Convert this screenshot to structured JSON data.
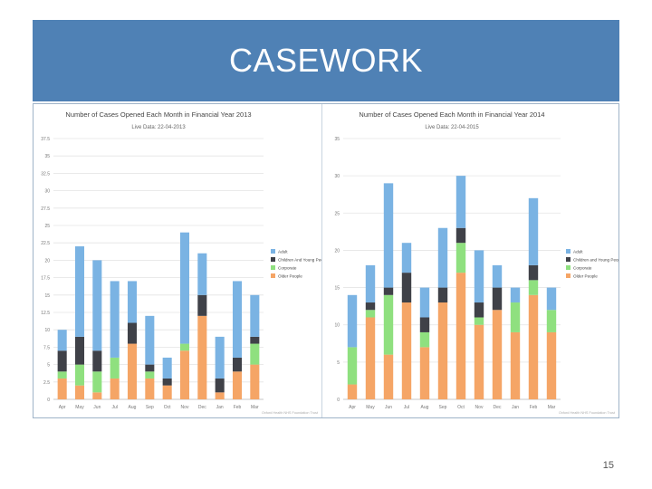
{
  "slide": {
    "title": "CASEWORK",
    "page_number": "15"
  },
  "colors": {
    "header": "#4f81b5",
    "adult": "#7ab3e3",
    "children": "#3f4148",
    "corporate": "#8fe07f",
    "older": "#f5a566"
  },
  "chart_data": [
    {
      "type": "bar",
      "stacked": true,
      "title": "Number of Cases Opened Each Month in Financial Year 2013",
      "subtitle": "Live Data: 22-04-2013",
      "ylabel": "",
      "ylim": [
        0,
        37.5
      ],
      "yticks": [
        0,
        2.5,
        5,
        7.5,
        10,
        12.5,
        15,
        17.5,
        20,
        22.5,
        25,
        27.5,
        30,
        32.5,
        35,
        37.5
      ],
      "yticklabels": [
        "0",
        "2.5",
        "5",
        "7.5",
        "10",
        "12.5",
        "15",
        "17.5",
        "20",
        "22.5",
        "25",
        "27.5",
        "30",
        "32.5",
        "35",
        "37.5"
      ],
      "categories": [
        "Apr",
        "May",
        "Jun",
        "Jul",
        "Aug",
        "Sep",
        "Oct",
        "Nov",
        "Dec",
        "Jan",
        "Feb",
        "Mar"
      ],
      "series": [
        {
          "name": "Older People",
          "color": "#f5a566",
          "values": [
            3,
            2,
            1,
            3,
            8,
            3,
            2,
            7,
            12,
            1,
            4,
            5
          ]
        },
        {
          "name": "Corporate",
          "color": "#8fe07f",
          "values": [
            1,
            3,
            3,
            3,
            0,
            1,
            0,
            1,
            0,
            0,
            0,
            3
          ]
        },
        {
          "name": "Children And Young People",
          "color": "#3f4148",
          "values": [
            3,
            4,
            3,
            0,
            3,
            1,
            1,
            0,
            3,
            2,
            2,
            1
          ]
        },
        {
          "name": "Adult",
          "color": "#7ab3e3",
          "values": [
            3,
            13,
            13,
            11,
            6,
            7,
            3,
            16,
            6,
            6,
            11,
            6
          ]
        }
      ],
      "legend": [
        "Adult",
        "Children And Young People",
        "Corporate",
        "Older People"
      ],
      "legend_position": "right",
      "footer": "Oxford Health NHS Foundation Trust"
    },
    {
      "type": "bar",
      "stacked": true,
      "title": "Number of Cases Opened Each Month in Financial Year 2014",
      "subtitle": "Live Data: 22-04-2015",
      "ylabel": "",
      "ylim": [
        0,
        35
      ],
      "yticks": [
        0,
        5,
        10,
        15,
        20,
        25,
        30,
        35
      ],
      "yticklabels": [
        "0",
        "5",
        "10",
        "15",
        "20",
        "25",
        "30",
        "35"
      ],
      "categories": [
        "Apr",
        "May",
        "Jun",
        "Jul",
        "Aug",
        "Sep",
        "Oct",
        "Nov",
        "Dec",
        "Jan",
        "Feb",
        "Mar"
      ],
      "series": [
        {
          "name": "Older People",
          "color": "#f5a566",
          "values": [
            2,
            11,
            6,
            13,
            7,
            13,
            17,
            10,
            12,
            9,
            14,
            9
          ]
        },
        {
          "name": "Corporate",
          "color": "#8fe07f",
          "values": [
            5,
            1,
            8,
            0,
            2,
            0,
            4,
            1,
            0,
            4,
            2,
            3
          ]
        },
        {
          "name": "Children and Young People",
          "color": "#3f4148",
          "values": [
            0,
            1,
            1,
            4,
            2,
            2,
            2,
            2,
            3,
            0,
            2,
            0
          ]
        },
        {
          "name": "Adult",
          "color": "#7ab3e3",
          "values": [
            7,
            5,
            14,
            4,
            4,
            8,
            7,
            7,
            3,
            2,
            9,
            3
          ]
        }
      ],
      "legend": [
        "Adult",
        "Children and Young People",
        "Corporate",
        "Older People"
      ],
      "legend_position": "right",
      "footer": "Oxford Health NHS Foundation Trust"
    }
  ]
}
